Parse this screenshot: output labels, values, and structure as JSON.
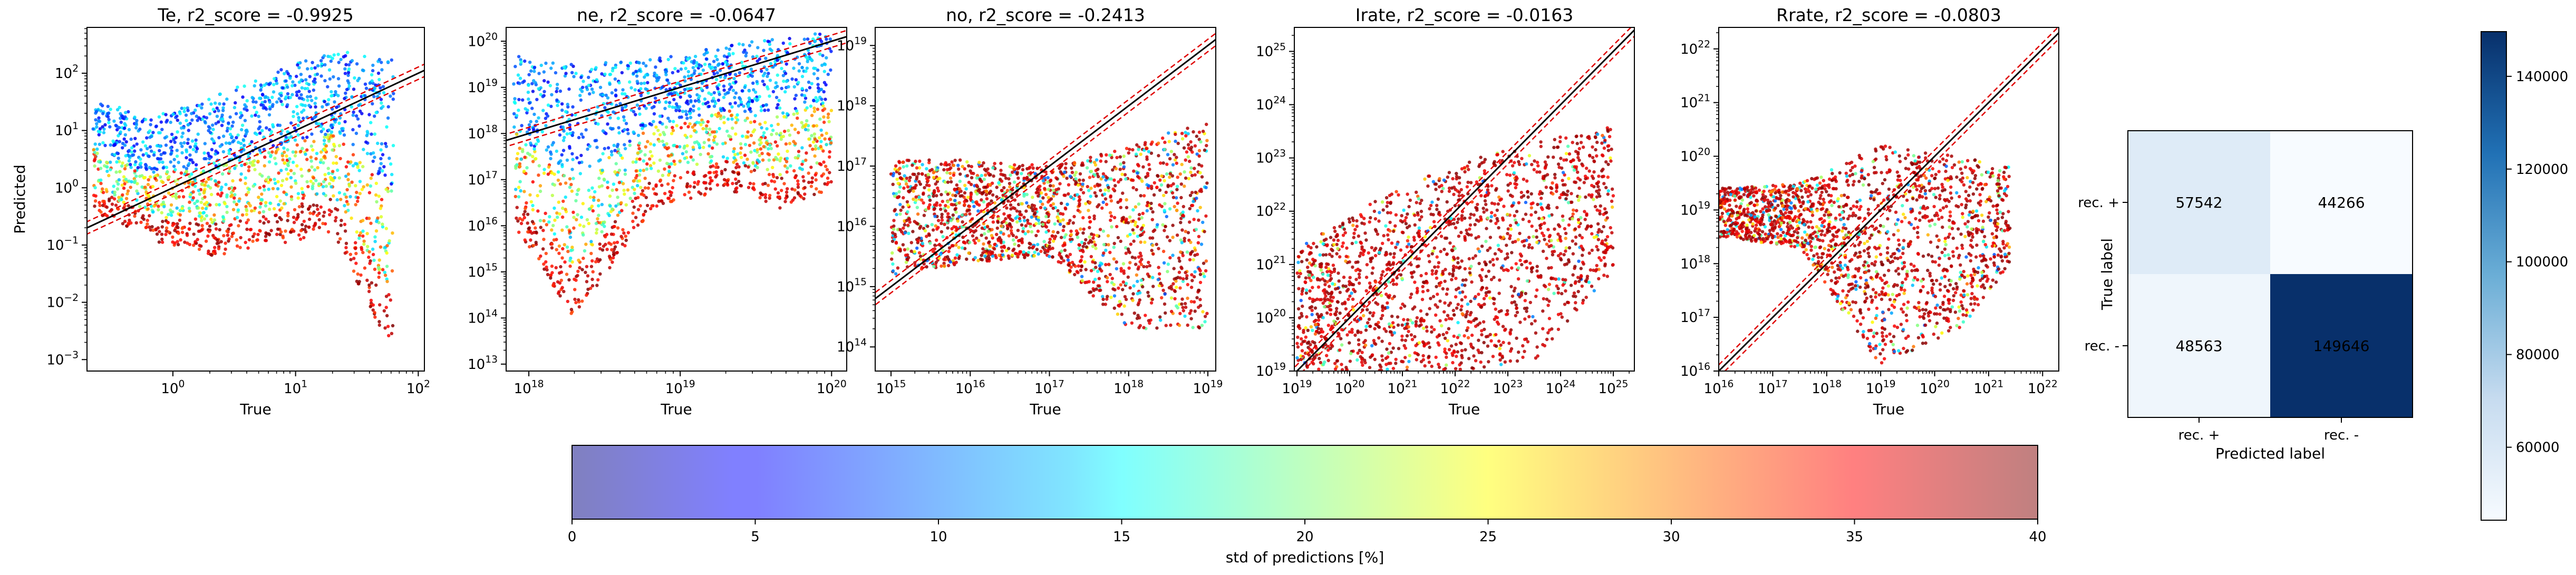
{
  "chart_data": [
    {
      "type": "scatter",
      "title": "Te, r2_score = -0.9925",
      "xlabel": "True",
      "ylabel": "Predicted",
      "xscale": "log",
      "yscale": "log",
      "xlim_exp": [
        -0.7,
        2.05
      ],
      "ylim_exp": [
        -3.2,
        2.8
      ],
      "xticks": [
        "10^0",
        "10^1",
        "10^2"
      ],
      "xtick_exps": [
        0,
        1,
        2
      ],
      "yticks": [
        "10^-3",
        "10^-2",
        "10^-1",
        "10^0",
        "10^1",
        "10^2"
      ],
      "ytick_exps": [
        -3,
        -2,
        -1,
        0,
        1,
        2
      ],
      "envelope_x_exp": [
        -0.65,
        -0.2,
        0.3,
        0.8,
        1.3,
        1.8
      ],
      "envelope_upper_exp": [
        1.6,
        1.2,
        1.6,
        2.0,
        2.4,
        2.3
      ],
      "envelope_lower_exp": [
        -0.4,
        -0.9,
        -1.2,
        -1.0,
        -0.8,
        -2.9
      ],
      "reference_lines": [
        "y = x",
        "y = x ± margin"
      ]
    },
    {
      "type": "scatter",
      "title": "ne, r2_score = -0.0647",
      "xlabel": "True",
      "ylabel": "",
      "xscale": "log",
      "yscale": "log",
      "xlim_exp": [
        17.85,
        20.1
      ],
      "ylim_exp": [
        12.85,
        20.3
      ],
      "xticks": [
        "10^18",
        "10^19",
        "10^20"
      ],
      "xtick_exps": [
        18,
        19,
        20
      ],
      "yticks": [
        "10^13",
        "10^14",
        "10^15",
        "10^16",
        "10^17",
        "10^18",
        "10^19",
        "10^20"
      ],
      "ytick_exps": [
        13,
        14,
        15,
        16,
        17,
        18,
        19,
        20
      ],
      "envelope_x_exp": [
        17.9,
        18.3,
        18.8,
        19.3,
        19.7,
        20.0
      ],
      "envelope_upper_exp": [
        19.7,
        19.5,
        19.6,
        19.9,
        20.1,
        20.2
      ],
      "envelope_lower_exp": [
        16.0,
        14.0,
        16.3,
        16.8,
        16.3,
        16.8
      ],
      "reference_lines": [
        "y = x",
        "y = x ± margin"
      ]
    },
    {
      "type": "scatter",
      "title": "no, r2_score = -0.2413",
      "xlabel": "True",
      "ylabel": "",
      "xscale": "log",
      "yscale": "log",
      "xlim_exp": [
        14.8,
        19.1
      ],
      "ylim_exp": [
        13.6,
        19.3
      ],
      "xticks": [
        "10^15",
        "10^16",
        "10^17",
        "10^18",
        "10^19"
      ],
      "xtick_exps": [
        15,
        16,
        17,
        18,
        19
      ],
      "yticks": [
        "10^14",
        "10^15",
        "10^16",
        "10^17",
        "10^18",
        "10^19"
      ],
      "ytick_exps": [
        14,
        15,
        16,
        17,
        18,
        19
      ],
      "envelope_x_exp": [
        15.0,
        16.0,
        17.0,
        18.0,
        19.0
      ],
      "envelope_upper_exp": [
        17.1,
        17.1,
        17.0,
        17.3,
        17.8
      ],
      "envelope_lower_exp": [
        15.2,
        15.4,
        15.5,
        14.3,
        14.3
      ],
      "reference_lines": [
        "y = x",
        "y = x ± margin"
      ]
    },
    {
      "type": "scatter",
      "title": "Irate, r2_score = -0.0163",
      "xlabel": "True",
      "ylabel": "",
      "xscale": "log",
      "yscale": "log",
      "xlim_exp": [
        18.95,
        25.4
      ],
      "ylim_exp": [
        19.0,
        25.45
      ],
      "xticks": [
        "10^19",
        "10^20",
        "10^21",
        "10^22",
        "10^23",
        "10^24",
        "10^25"
      ],
      "xtick_exps": [
        19,
        20,
        21,
        22,
        23,
        24,
        25
      ],
      "yticks": [
        "10^19",
        "10^20",
        "10^21",
        "10^22",
        "10^23",
        "10^24",
        "10^25"
      ],
      "ytick_exps": [
        19,
        20,
        21,
        22,
        23,
        24,
        25
      ],
      "envelope_x_exp": [
        19.0,
        20.5,
        22.0,
        23.5,
        25.0
      ],
      "envelope_upper_exp": [
        21.3,
        22.2,
        22.9,
        23.3,
        23.6
      ],
      "envelope_lower_exp": [
        19.0,
        19.0,
        19.0,
        19.2,
        20.9
      ],
      "reference_lines": [
        "y = x",
        "y = x ± margin"
      ]
    },
    {
      "type": "scatter",
      "title": "Rrate, r2_score = -0.0803",
      "xlabel": "True",
      "ylabel": "",
      "xscale": "log",
      "yscale": "log",
      "xlim_exp": [
        16.0,
        22.3
      ],
      "ylim_exp": [
        16.0,
        22.4
      ],
      "xticks": [
        "10^16",
        "10^17",
        "10^18",
        "10^19",
        "10^20",
        "10^21",
        "10^22"
      ],
      "xtick_exps": [
        16,
        17,
        18,
        19,
        20,
        21,
        22
      ],
      "yticks": [
        "10^16",
        "10^17",
        "10^18",
        "10^19",
        "10^20",
        "10^21",
        "10^22"
      ],
      "ytick_exps": [
        16,
        17,
        18,
        19,
        20,
        21,
        22
      ],
      "envelope_x_exp": [
        16.0,
        17.5,
        19.0,
        20.5,
        21.4
      ],
      "envelope_upper_exp": [
        19.4,
        19.5,
        20.2,
        20.0,
        19.8
      ],
      "envelope_lower_exp": [
        18.5,
        18.3,
        16.1,
        16.8,
        18.0
      ],
      "reference_lines": [
        "y = x",
        "y = x ± margin"
      ]
    },
    {
      "type": "heatmap",
      "title": "",
      "xlabel": "Predicted label",
      "ylabel": "True label",
      "x_categories": [
        "rec. +",
        "rec. -"
      ],
      "y_categories": [
        "rec. +",
        "rec. -"
      ],
      "values": [
        [
          57542,
          44266
        ],
        [
          48563,
          149646
        ]
      ],
      "cell_labels": [
        [
          "57542",
          "44266"
        ],
        [
          "48563",
          "149646"
        ]
      ],
      "colormap": "Blues",
      "colorbar_ticks": [
        "60000",
        "80000",
        "100000",
        "120000",
        "140000"
      ],
      "colorbar_tick_values": [
        60000,
        80000,
        100000,
        120000,
        140000
      ],
      "colorbar_range": [
        44266,
        149646
      ]
    }
  ],
  "colorbar": {
    "label": "std of predictions [%]",
    "colormap": "jet",
    "alpha": 0.5,
    "range": [
      0,
      40
    ],
    "ticks": [
      "0",
      "5",
      "10",
      "15",
      "20",
      "25",
      "30",
      "35",
      "40"
    ],
    "tick_values": [
      0,
      5,
      10,
      15,
      20,
      25,
      30,
      35,
      40
    ]
  }
}
